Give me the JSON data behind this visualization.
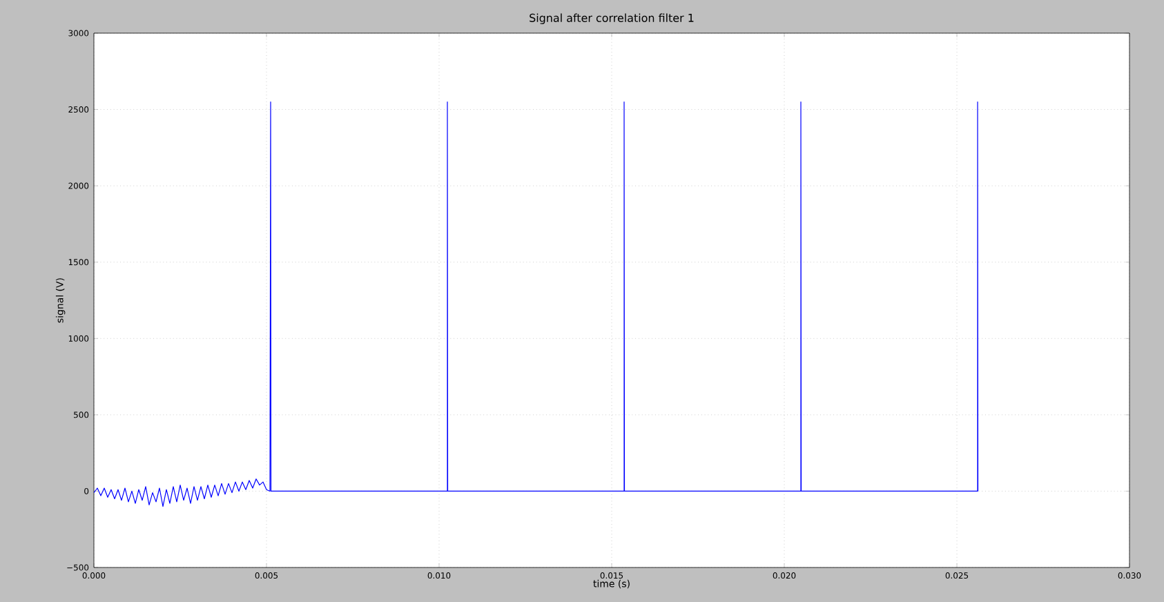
{
  "chart_data": {
    "type": "line",
    "title": "Signal after correlation filter 1",
    "xlabel": "time (s)",
    "ylabel": "signal (V)",
    "xlim": [
      0,
      0.03
    ],
    "ylim": [
      -500,
      3000
    ],
    "xticks": [
      {
        "value": 0,
        "label": "0.000"
      },
      {
        "value": 0.005,
        "label": "0.005"
      },
      {
        "value": 0.01,
        "label": "0.010"
      },
      {
        "value": 0.015,
        "label": "0.015"
      },
      {
        "value": 0.02,
        "label": "0.020"
      },
      {
        "value": 0.025,
        "label": "0.025"
      },
      {
        "value": 0.03,
        "label": "0.030"
      }
    ],
    "yticks": [
      {
        "value": -500,
        "label": "−500"
      },
      0,
      500,
      1000,
      1500,
      2000,
      2500,
      3000
    ],
    "grid": true,
    "series": [
      {
        "color": "#0000ff",
        "x": [
          0,
          0.0001,
          0.0002,
          0.0003,
          0.0004,
          0.0005,
          0.0006,
          0.0007,
          0.0008,
          0.0009,
          0.001,
          0.0011,
          0.0012,
          0.0013,
          0.0014,
          0.0015,
          0.0016,
          0.0017,
          0.0018,
          0.0019,
          0.002,
          0.0021,
          0.0022,
          0.0023,
          0.0024,
          0.0025,
          0.0026,
          0.0027,
          0.0028,
          0.0029,
          0.003,
          0.0031,
          0.0032,
          0.0033,
          0.0034,
          0.0035,
          0.0036,
          0.0037,
          0.0038,
          0.0039,
          0.004,
          0.0041,
          0.0042,
          0.0043,
          0.0044,
          0.0045,
          0.0046,
          0.0047,
          0.0048,
          0.0049,
          0.005,
          0.0051,
          0.00512,
          0.00513,
          0.01024,
          0.01024,
          0.01025,
          0.01536,
          0.01536,
          0.01537,
          0.02048,
          0.02048,
          0.02049,
          0.0256,
          0.0256,
          0.02561
        ],
        "values": [
          -10,
          20,
          -30,
          20,
          -40,
          10,
          -50,
          10,
          -60,
          20,
          -70,
          0,
          -80,
          10,
          -60,
          30,
          -90,
          -10,
          -70,
          20,
          -100,
          10,
          -80,
          30,
          -70,
          40,
          -60,
          20,
          -80,
          30,
          -60,
          30,
          -50,
          40,
          -40,
          40,
          -30,
          50,
          -20,
          50,
          -10,
          60,
          0,
          60,
          10,
          70,
          20,
          80,
          40,
          60,
          10,
          0,
          2550,
          0,
          0,
          2550,
          0,
          0,
          2550,
          0,
          0,
          2550,
          0,
          0,
          2550,
          0
        ]
      }
    ]
  }
}
